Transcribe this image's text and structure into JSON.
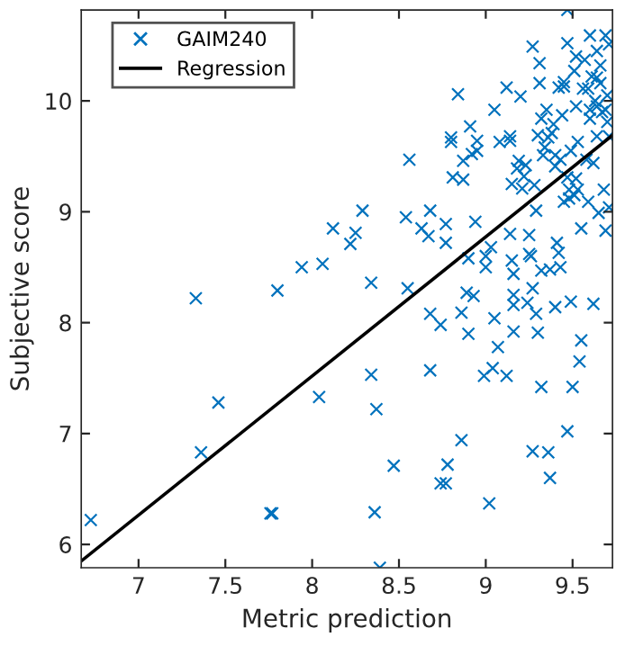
{
  "chart_data": {
    "type": "scatter",
    "xlabel": "Metric prediction",
    "ylabel": "Subjective score",
    "xlim": [
      6.67,
      9.73
    ],
    "ylim": [
      5.79,
      10.82
    ],
    "xticks": [
      7,
      7.5,
      8,
      8.5,
      9,
      9.5
    ],
    "yticks": [
      6,
      7,
      8,
      9,
      10
    ],
    "grid": false,
    "legend": "top left",
    "series": [
      {
        "name": "GAIM240",
        "color": "#0072bd",
        "marker": "cross",
        "x": [
          6.725,
          7.33,
          7.36,
          7.46,
          7.76,
          7.77,
          7.8,
          7.94,
          8.04,
          8.06,
          8.12,
          8.22,
          8.25,
          8.29,
          8.34,
          8.34,
          8.36,
          8.37,
          8.39,
          8.47,
          8.54,
          8.55,
          8.56,
          8.63,
          8.67,
          8.68,
          8.68,
          8.68,
          8.74,
          8.77,
          8.77,
          8.77,
          8.78,
          8.74,
          8.8,
          8.8,
          8.81,
          8.84,
          8.86,
          8.86,
          8.87,
          8.87,
          8.89,
          8.9,
          8.9,
          8.91,
          8.92,
          8.93,
          8.94,
          8.95,
          8.95,
          8.99,
          9.0,
          9.0,
          9.02,
          9.03,
          9.04,
          9.05,
          9.05,
          9.07,
          9.08,
          9.12,
          9.12,
          9.14,
          9.14,
          9.14,
          9.15,
          9.16,
          9.15,
          9.16,
          9.16,
          9.16,
          9.18,
          9.19,
          9.2,
          9.21,
          9.22,
          9.23,
          9.24,
          9.25,
          9.25,
          9.26,
          9.27,
          9.27,
          9.27,
          9.28,
          9.29,
          9.29,
          9.3,
          9.3,
          9.31,
          9.31,
          9.32,
          9.32,
          9.32,
          9.33,
          9.34,
          9.35,
          9.36,
          9.36,
          9.37,
          9.37,
          9.38,
          9.39,
          9.4,
          9.4,
          9.41,
          9.42,
          9.42,
          9.43,
          9.44,
          9.45,
          9.47,
          9.47,
          9.47,
          9.48,
          9.49,
          9.49,
          9.5,
          9.51,
          9.52,
          9.52,
          9.53,
          9.53,
          9.54,
          9.55,
          9.55,
          9.56,
          9.57,
          9.58,
          9.59,
          9.6,
          9.6,
          9.61,
          9.62,
          9.62,
          9.63,
          9.64,
          9.64,
          9.65,
          9.66,
          9.67,
          9.68,
          9.69,
          9.69,
          9.7,
          9.71,
          9.71,
          9.71,
          9.45,
          9.59,
          9.64,
          9.6,
          9.69,
          9.66,
          9.7,
          9.45,
          9.48,
          9.51,
          9.47,
          9.4,
          9.52,
          9.64,
          9.43
        ],
        "values": [
          6.22,
          8.22,
          6.83,
          7.28,
          6.28,
          6.28,
          8.29,
          8.5,
          7.33,
          8.53,
          8.85,
          8.71,
          8.81,
          9.01,
          8.36,
          7.53,
          6.29,
          7.22,
          5.79,
          6.71,
          8.95,
          8.31,
          9.47,
          8.85,
          8.78,
          9.01,
          8.08,
          7.57,
          7.98,
          8.72,
          8.89,
          6.55,
          6.72,
          6.55,
          9.63,
          9.67,
          9.31,
          10.06,
          6.94,
          8.09,
          9.46,
          9.29,
          8.27,
          8.58,
          7.9,
          9.77,
          9.52,
          8.24,
          8.91,
          9.64,
          9.55,
          7.52,
          8.6,
          8.5,
          6.37,
          8.68,
          7.59,
          8.04,
          9.92,
          7.78,
          9.63,
          10.12,
          7.52,
          8.8,
          9.68,
          9.64,
          8.56,
          8.44,
          9.25,
          8.25,
          8.16,
          7.92,
          9.39,
          9.46,
          10.04,
          9.21,
          9.32,
          9.42,
          8.18,
          8.62,
          8.79,
          8.6,
          8.31,
          6.84,
          10.49,
          9.24,
          9.01,
          8.08,
          7.91,
          9.69,
          10.34,
          10.16,
          8.47,
          7.42,
          9.84,
          9.51,
          9.58,
          9.92,
          9.67,
          6.83,
          6.6,
          8.48,
          9.71,
          9.79,
          9.51,
          8.14,
          8.72,
          10.12,
          8.63,
          8.5,
          9.87,
          10.17,
          7.02,
          10.52,
          10.82,
          9.12,
          8.19,
          9.55,
          7.42,
          10.27,
          9.3,
          9.95,
          9.63,
          9.2,
          7.65,
          7.84,
          8.85,
          10.11,
          10.37,
          9.47,
          9.09,
          10.59,
          9.84,
          10.22,
          8.17,
          9.44,
          10.0,
          10.45,
          9.68,
          8.99,
          10.32,
          9.9,
          9.2,
          10.59,
          8.83,
          10.05,
          10.51,
          9.04,
          9.68,
          10.13,
          10.11,
          9.95,
          9.92,
          9.92,
          10.16,
          9.81,
          9.09,
          9.2,
          9.15,
          9.31,
          9.41,
          10.4,
          10.21,
          9.47
        ]
      },
      {
        "name": "Regression",
        "type": "line",
        "color": "#000000",
        "line_style": "solid",
        "marker": "none",
        "x": [
          6.67,
          9.73
        ],
        "values": [
          5.85,
          9.69
        ]
      }
    ]
  }
}
